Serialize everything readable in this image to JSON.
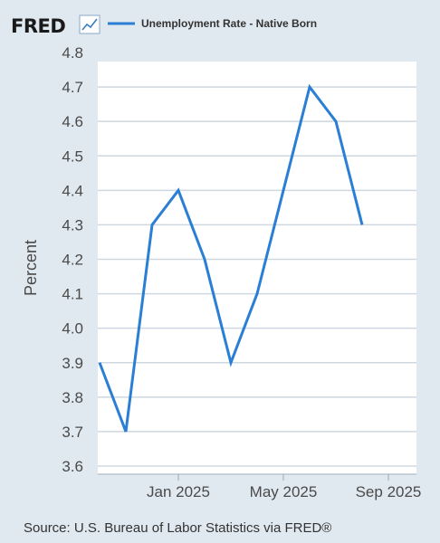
{
  "brand": {
    "name": "FRED",
    "icon": "line-chart-icon"
  },
  "colors": {
    "background": "#e1e9f0",
    "plot_background": "#ffffff",
    "series": "#2a7fd4",
    "grid": "#cfd8e0"
  },
  "source": "Source: U.S. Bureau of Labor Statistics via FRED®",
  "chart_data": {
    "type": "line",
    "title": "",
    "xlabel": "",
    "ylabel": "Percent",
    "ylim": [
      3.6,
      4.8
    ],
    "yticks": [
      "3.6",
      "3.7",
      "3.8",
      "3.9",
      "4.0",
      "4.1",
      "4.2",
      "4.3",
      "4.4",
      "4.5",
      "4.6",
      "4.7",
      "4.8"
    ],
    "xticks": [
      "Jan 2025",
      "May 2025",
      "Sep 2025"
    ],
    "x": [
      "2024-10",
      "2024-11",
      "2024-12",
      "2025-01",
      "2025-02",
      "2025-03",
      "2025-04",
      "2025-05",
      "2025-06",
      "2025-07",
      "2025-08",
      "2025-09",
      "2025-10"
    ],
    "grid": true,
    "legend": "top",
    "series": [
      {
        "name": "Unemployment Rate - Native Born",
        "color": "#2a7fd4",
        "values": [
          3.9,
          3.7,
          4.3,
          4.4,
          4.2,
          3.9,
          4.1,
          4.4,
          4.7,
          4.6,
          4.3,
          null,
          null
        ]
      }
    ]
  }
}
